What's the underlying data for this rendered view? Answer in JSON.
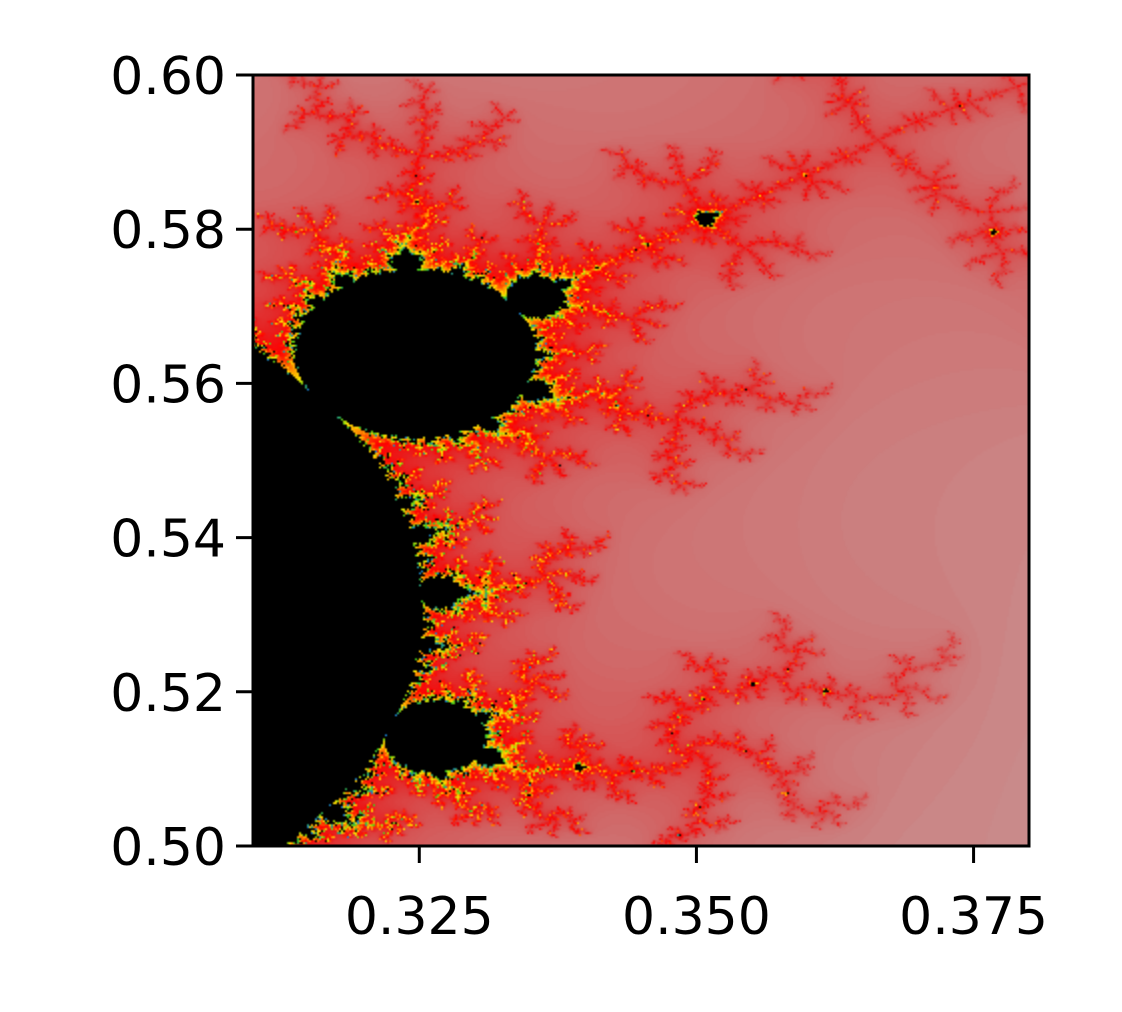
{
  "chart_data": {
    "type": "heatmap",
    "title": "",
    "xlabel": "",
    "ylabel": "",
    "xlim": [
      0.31,
      0.38
    ],
    "ylim": [
      0.5,
      0.6
    ],
    "x_ticks": [
      {
        "value": 0.325,
        "label": "0.325"
      },
      {
        "value": 0.35,
        "label": "0.350"
      },
      {
        "value": 0.375,
        "label": "0.375"
      }
    ],
    "y_ticks": [
      {
        "value": 0.6,
        "label": "0.60"
      },
      {
        "value": 0.58,
        "label": "0.58"
      },
      {
        "value": 0.56,
        "label": "0.56"
      },
      {
        "value": 0.54,
        "label": "0.54"
      },
      {
        "value": 0.52,
        "label": "0.52"
      },
      {
        "value": 0.5,
        "label": "0.50"
      }
    ],
    "grid": false,
    "max_iterations": 256,
    "colors": {
      "interior": "#000000",
      "palette": [
        "#ccadad",
        "#c98c8c",
        "#cf6d6d",
        "#d94848",
        "#e81e1e",
        "#ff0000",
        "#ff8800",
        "#ffe600",
        "#3ccc18",
        "#1a7fd6"
      ]
    }
  }
}
